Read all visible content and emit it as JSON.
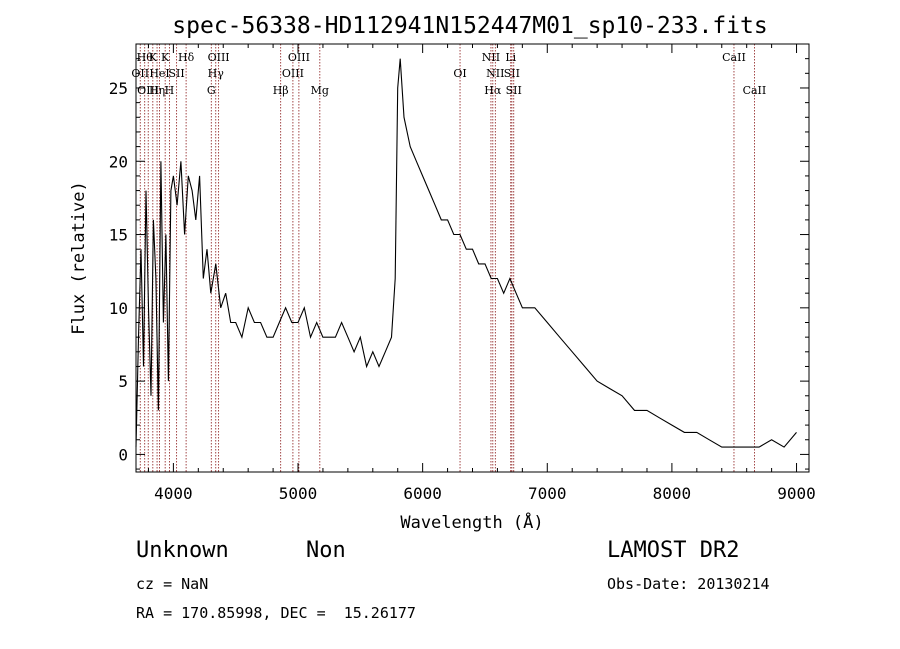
{
  "chart_data": {
    "type": "line",
    "title": "spec-56338-HD112941N152447M01_sp10-233.fits",
    "xlabel": "Wavelength (Å)",
    "ylabel": "Flux (relative)",
    "xlim": [
      3700,
      9100
    ],
    "ylim": [
      -1.2,
      28
    ],
    "xticks": [
      4000,
      5000,
      6000,
      7000,
      8000,
      9000
    ],
    "yticks": [
      0,
      5,
      10,
      15,
      20,
      25
    ],
    "grid": false,
    "series": [
      {
        "x": [
          3700,
          3720,
          3740,
          3760,
          3780,
          3800,
          3820,
          3840,
          3860,
          3880,
          3900,
          3920,
          3940,
          3960,
          3980,
          4000,
          4030,
          4060,
          4090,
          4120,
          4150,
          4180,
          4210,
          4240,
          4270,
          4300,
          4340,
          4380,
          4420,
          4460,
          4500,
          4550,
          4600,
          4650,
          4700,
          4750,
          4800,
          4850,
          4900,
          4950,
          5000,
          5050,
          5100,
          5150,
          5200,
          5250,
          5300,
          5350,
          5400,
          5450,
          5500,
          5550,
          5600,
          5650,
          5700,
          5750,
          5780,
          5800,
          5820,
          5850,
          5900,
          5950,
          6000,
          6050,
          6100,
          6150,
          6200,
          6250,
          6300,
          6350,
          6400,
          6450,
          6500,
          6550,
          6600,
          6650,
          6700,
          6750,
          6800,
          6900,
          7000,
          7100,
          7200,
          7300,
          7400,
          7500,
          7600,
          7700,
          7800,
          7900,
          8000,
          8100,
          8200,
          8300,
          8400,
          8500,
          8600,
          8700,
          8800,
          8900,
          9000
        ],
        "y": [
          0.5,
          8,
          14,
          6,
          18,
          10,
          4,
          16,
          12,
          3,
          20,
          9,
          15,
          5,
          18,
          19,
          17,
          20,
          15,
          19,
          18,
          16,
          19,
          12,
          14,
          11,
          13,
          10,
          11,
          9,
          9,
          8,
          10,
          9,
          9,
          8,
          8,
          9,
          10,
          9,
          9,
          10,
          8,
          9,
          8,
          8,
          8,
          9,
          8,
          7,
          8,
          6,
          7,
          6,
          7,
          8,
          12,
          25,
          27,
          23,
          21,
          20,
          19,
          18,
          17,
          16,
          16,
          15,
          15,
          14,
          14,
          13,
          13,
          12,
          12,
          11,
          12,
          11,
          10,
          10,
          9,
          8,
          7,
          6,
          5,
          4.5,
          4,
          3,
          3,
          2.5,
          2,
          1.5,
          1.5,
          1,
          0.5,
          0.5,
          0.5,
          0.5,
          1,
          0.5,
          1.5
        ]
      }
    ],
    "lines": [
      {
        "x": 3734,
        "row": 1,
        "label": "OII"
      },
      {
        "x": 3770,
        "row": 0,
        "label": "Hθ"
      },
      {
        "x": 3798,
        "row": 2,
        "label": "OIII"
      },
      {
        "x": 3835,
        "row": 0,
        "label": "K"
      },
      {
        "x": 3869,
        "row": 2,
        "label": "Hη"
      },
      {
        "x": 3889,
        "row": 1,
        "label": "HeI"
      },
      {
        "x": 3934,
        "row": 0,
        "label": "K"
      },
      {
        "x": 3968,
        "row": 2,
        "label": "H"
      },
      {
        "x": 4026,
        "row": 1,
        "label": "SII"
      },
      {
        "x": 4102,
        "row": 0,
        "label": "Hδ"
      },
      {
        "x": 4304,
        "row": 2,
        "label": "G"
      },
      {
        "x": 4340,
        "row": 1,
        "label": "Hγ"
      },
      {
        "x": 4363,
        "row": 0,
        "label": "OIII"
      },
      {
        "x": 4861,
        "row": 2,
        "label": "Hβ"
      },
      {
        "x": 4959,
        "row": 1,
        "label": "OIII"
      },
      {
        "x": 5007,
        "row": 0,
        "label": "OIII"
      },
      {
        "x": 5175,
        "row": 2,
        "label": "Mg"
      },
      {
        "x": 6300,
        "row": 1,
        "label": "OI"
      },
      {
        "x": 6548,
        "row": 0,
        "label": "NII"
      },
      {
        "x": 6563,
        "row": 2,
        "label": "Hα"
      },
      {
        "x": 6583,
        "row": 1,
        "label": "NII"
      },
      {
        "x": 6707,
        "row": 0,
        "label": "Li"
      },
      {
        "x": 6716,
        "row": 1,
        "label": "SII"
      },
      {
        "x": 6731,
        "row": 2,
        "label": "SII"
      },
      {
        "x": 8498,
        "row": 0,
        "label": "CaII"
      },
      {
        "x": 8662,
        "row": 2,
        "label": "CaII"
      }
    ]
  },
  "info": {
    "class_label": "Unknown",
    "subclass_label": "Non",
    "survey": "LAMOST DR2",
    "cz": "cz = NaN",
    "obs_date": "Obs-Date: 20130214",
    "coords": "RA = 170.85998, DEC =  15.26177"
  },
  "colors": {
    "line_marker": "#8b1a1a",
    "spectrum": "#000000"
  }
}
